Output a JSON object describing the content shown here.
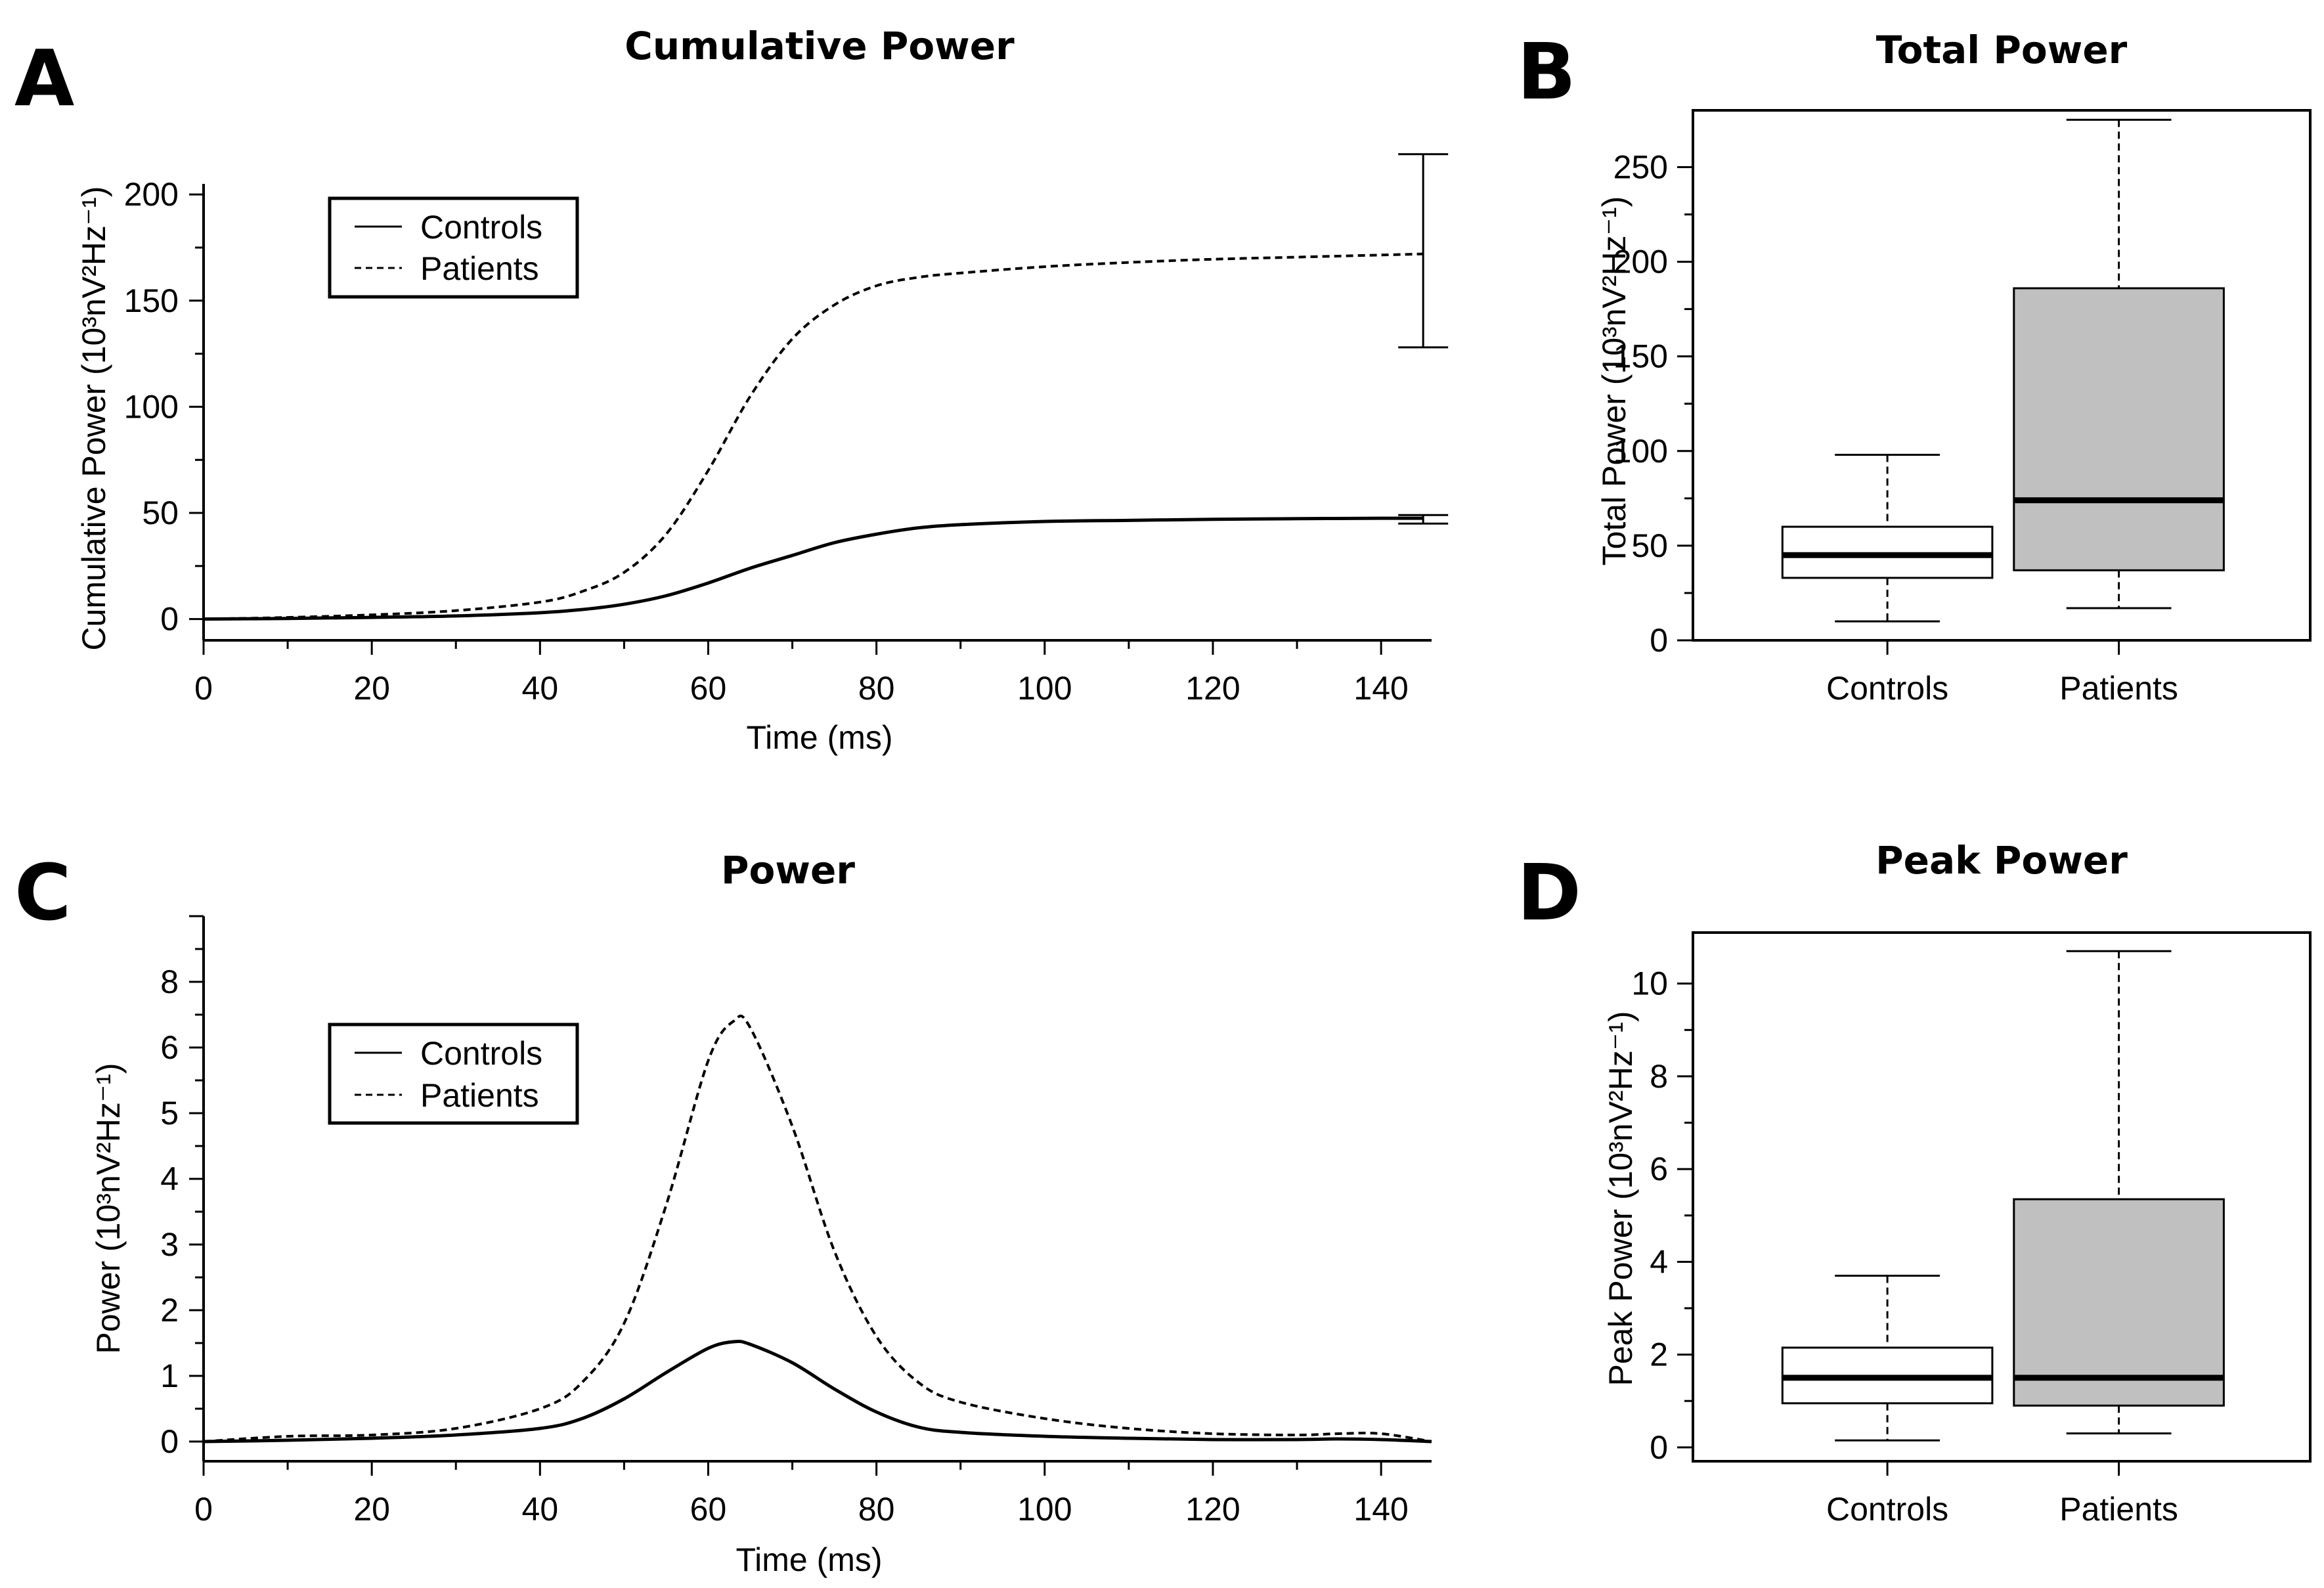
{
  "chart_data": [
    {
      "panel": "A",
      "type": "line",
      "title": "Cumulative Power",
      "xlabel": "Time (ms)",
      "ylabel": "Cumulative Power (10³nV²Hz⁻¹)",
      "xlim": [
        0,
        146
      ],
      "ylim": [
        -10,
        205
      ],
      "xticks": [
        0,
        20,
        40,
        60,
        80,
        100,
        120,
        140
      ],
      "yticks": [
        0,
        50,
        100,
        150,
        200
      ],
      "legend": {
        "position": "top-left",
        "entries": [
          "Controls",
          "Patients"
        ]
      },
      "x": [
        0,
        10,
        20,
        30,
        40,
        45,
        50,
        55,
        60,
        65,
        70,
        75,
        80,
        85,
        90,
        100,
        110,
        120,
        130,
        140,
        145
      ],
      "series": [
        {
          "name": "Controls",
          "style": "solid",
          "values": [
            0,
            0.3,
            0.8,
            1.5,
            3,
            4.5,
            7,
            11,
            17,
            24,
            30,
            36,
            40,
            43,
            44.5,
            46,
            46.5,
            47,
            47.3,
            47.5,
            47.5
          ],
          "error_bar": {
            "x": 145,
            "low": 45,
            "high": 49
          }
        },
        {
          "name": "Patients",
          "style": "dashed",
          "values": [
            0,
            0.8,
            2,
            4,
            8,
            13,
            22,
            40,
            70,
            105,
            132,
            148,
            157,
            161,
            163,
            166,
            168,
            169.5,
            170.5,
            171.5,
            172
          ],
          "error_bar": {
            "x": 145,
            "low": 128,
            "high": 219
          }
        }
      ]
    },
    {
      "panel": "B",
      "type": "box",
      "title": "Total Power",
      "xlabel": "",
      "ylabel": "Total Power (10³nV²Hz⁻¹)",
      "ylim": [
        0,
        280
      ],
      "yticks": [
        0,
        50,
        100,
        150,
        200,
        250
      ],
      "categories": [
        "Controls",
        "Patients"
      ],
      "boxes": [
        {
          "name": "Controls",
          "min": 10,
          "q1": 33,
          "median": 45,
          "q3": 60,
          "max": 98,
          "fill": "#ffffff"
        },
        {
          "name": "Patients",
          "min": 17,
          "q1": 37,
          "median": 74,
          "q3": 186,
          "max": 275,
          "fill": "#c0c0c0"
        }
      ]
    },
    {
      "panel": "C",
      "type": "line",
      "title": "Power",
      "xlabel": "Time (ms)",
      "ylabel": "Power (10³nV²Hz⁻¹)",
      "xlim": [
        0,
        146
      ],
      "ylim": [
        -0.3,
        8
      ],
      "xticks": [
        0,
        20,
        40,
        60,
        80,
        100,
        120,
        140
      ],
      "yticks": [
        0,
        1,
        2,
        3,
        4,
        5,
        6,
        7,
        8
      ],
      "ytick_labels": [
        "0",
        "1",
        "2",
        "3",
        "4",
        "5",
        "6",
        "8"
      ],
      "legend": {
        "position": "center-left",
        "entries": [
          "Controls",
          "Patients"
        ]
      },
      "x": [
        0,
        10,
        20,
        30,
        40,
        45,
        50,
        55,
        60,
        63,
        65,
        70,
        75,
        80,
        85,
        90,
        100,
        110,
        120,
        130,
        135,
        140,
        146
      ],
      "series": [
        {
          "name": "Controls",
          "style": "solid",
          "values": [
            0,
            0.02,
            0.05,
            0.1,
            0.2,
            0.35,
            0.65,
            1.05,
            1.42,
            1.52,
            1.48,
            1.2,
            0.8,
            0.45,
            0.22,
            0.14,
            0.08,
            0.05,
            0.03,
            0.03,
            0.04,
            0.03,
            0
          ]
        },
        {
          "name": "Patients",
          "style": "dashed",
          "values": [
            0,
            0.08,
            0.1,
            0.2,
            0.5,
            0.9,
            1.8,
            3.6,
            5.8,
            6.4,
            6.3,
            4.8,
            2.9,
            1.6,
            0.9,
            0.6,
            0.35,
            0.2,
            0.12,
            0.1,
            0.12,
            0.12,
            0
          ]
        }
      ]
    },
    {
      "panel": "D",
      "type": "box",
      "title": "Peak Power",
      "xlabel": "",
      "ylabel": "Peak Power (10³nV²Hz⁻¹)",
      "ylim": [
        -0.3,
        11.1
      ],
      "yticks": [
        0,
        2,
        4,
        6,
        8,
        10
      ],
      "categories": [
        "Controls",
        "Patients"
      ],
      "boxes": [
        {
          "name": "Controls",
          "min": 0.15,
          "q1": 0.95,
          "median": 1.5,
          "q3": 2.15,
          "max": 3.7,
          "fill": "#ffffff"
        },
        {
          "name": "Patients",
          "min": 0.3,
          "q1": 0.9,
          "median": 1.5,
          "q3": 5.35,
          "max": 10.7,
          "fill": "#c0c0c0"
        }
      ]
    }
  ]
}
